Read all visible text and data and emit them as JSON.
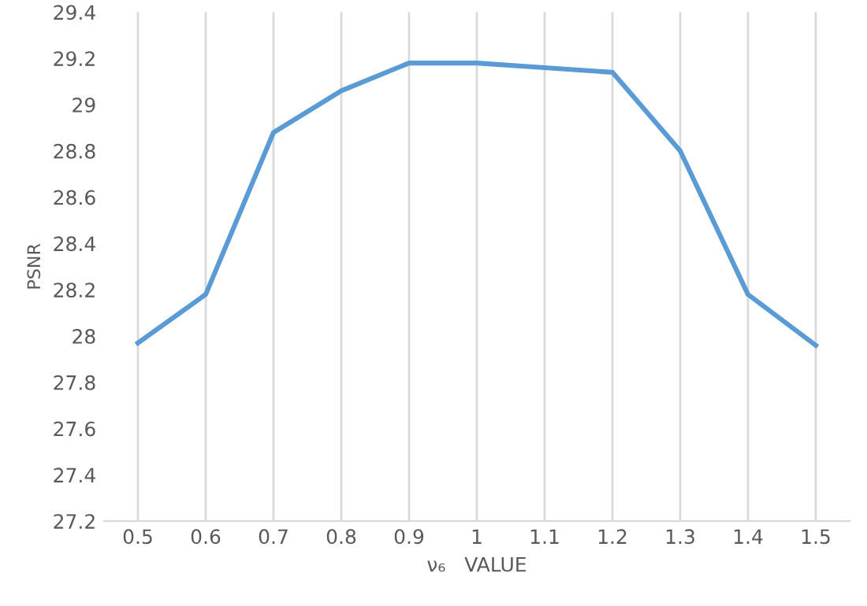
{
  "chart_data": {
    "type": "line",
    "xlabel": "ν₆   VALUE",
    "ylabel": "PSNR",
    "categories": [
      "0.5",
      "0.6",
      "0.7",
      "0.8",
      "0.9",
      "1",
      "1.1",
      "1.2",
      "1.3",
      "1.4",
      "1.5"
    ],
    "series": [
      {
        "color": "#5b9bd5",
        "values": [
          27.97,
          28.18,
          28.88,
          29.06,
          29.18,
          29.18,
          29.16,
          29.14,
          28.8,
          28.18,
          27.96
        ]
      }
    ],
    "ylim": [
      27.2,
      29.4
    ],
    "yticks": [
      27.2,
      27.4,
      27.6,
      27.8,
      {
        "value": 28,
        "label": "28"
      },
      28.2,
      28.4,
      28.6,
      28.8,
      {
        "value": 29,
        "label": "29"
      },
      29.2,
      29.4
    ],
    "grid": "x",
    "legend": false,
    "marker": "none",
    "line_style": "solid"
  }
}
